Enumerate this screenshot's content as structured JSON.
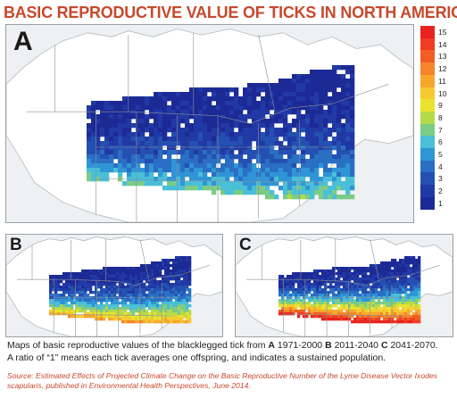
{
  "title": "BASIC REPRODUCTIVE VALUE OF TICKS IN NORTH AMERICA",
  "panels": [
    {
      "letter": "A",
      "period": "1971-2000"
    },
    {
      "letter": "B",
      "period": "2011-2040"
    },
    {
      "letter": "C",
      "period": "2041-2070"
    }
  ],
  "legend": {
    "labels": [
      "15",
      "14",
      "13",
      "12",
      "11",
      "10",
      "9",
      "8",
      "7",
      "6",
      "5",
      "4",
      "3",
      "2",
      "1"
    ],
    "colors": [
      "#e8231f",
      "#ef3d24",
      "#f25d24",
      "#f5842a",
      "#f8a72e",
      "#f5c92f",
      "#e9e32e",
      "#b6d94a",
      "#7ccb86",
      "#49bfd8",
      "#2f95d6",
      "#2a6fc4",
      "#2450b2",
      "#2139a4",
      "#1c2a96"
    ]
  },
  "caption": {
    "line1_pre": "Maps of basic reproductive values of the blacklegged tick from ",
    "a": "A",
    "a_period": " 1971-2000 ",
    "b": "B",
    "b_period": " 2011-2040 ",
    "c": "C",
    "c_period": " 2041-2070.",
    "line2": "A ratio of “1” means each tick averages one offspring, and indicates a sustained population."
  },
  "source": "Source: Estimated Effects of Projected Climate Change on the Basic Reproductive Number of the Lyme Disease Vector Ixodes scapularis, published in Environmental Health Perspectives, June 2014."
}
